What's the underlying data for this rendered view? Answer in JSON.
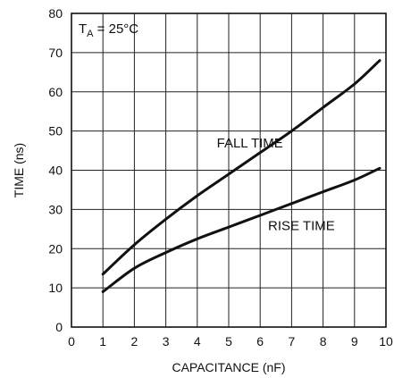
{
  "chart_data": {
    "type": "line",
    "title": "",
    "xlabel": "CAPACITANCE (nF)",
    "ylabel": "TIME (ns)",
    "xlim": [
      0,
      10
    ],
    "ylim": [
      0,
      80
    ],
    "xticks": [
      "0",
      "1",
      "2",
      "3",
      "4",
      "5",
      "6",
      "7",
      "8",
      "9",
      "10"
    ],
    "yticks": [
      "0",
      "10",
      "20",
      "30",
      "40",
      "50",
      "60",
      "70",
      "80"
    ],
    "grid": true,
    "condition": {
      "main": "T",
      "sub": "A",
      "rest": " = 25°C"
    },
    "series": [
      {
        "name": "FALL TIME",
        "x": [
          1,
          2,
          3,
          4,
          5,
          6,
          7,
          8,
          9,
          9.8
        ],
        "y": [
          13.5,
          21,
          27.5,
          33.5,
          39,
          44.5,
          50,
          56,
          62,
          68
        ]
      },
      {
        "name": "RISE TIME",
        "x": [
          1,
          2,
          3,
          4,
          5,
          6,
          7,
          8,
          9,
          9.8
        ],
        "y": [
          9,
          15,
          19,
          22.5,
          25.5,
          28.5,
          31.5,
          34.5,
          37.5,
          40.5
        ]
      }
    ],
    "annotations": [
      "FALL TIME",
      "RISE TIME"
    ]
  }
}
